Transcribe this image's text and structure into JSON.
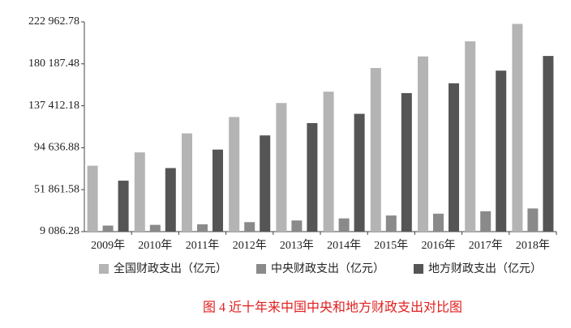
{
  "chart_data": {
    "type": "bar",
    "categories": [
      "2009年",
      "2010年",
      "2011年",
      "2012年",
      "2013年",
      "2014年",
      "2015年",
      "2016年",
      "2017年",
      "2018年"
    ],
    "series": [
      {
        "name": "全国财政支出（亿元）",
        "color": "#b4b4b4",
        "values": [
          76300,
          89874,
          109248,
          125953,
          140212,
          151786,
          175878,
          187755,
          203085,
          220904
        ]
      },
      {
        "name": "中央财政支出（亿元）",
        "color": "#8a8a8a",
        "values": [
          15256,
          15990,
          16514,
          18765,
          20472,
          22570,
          25542,
          27404,
          29857,
          32708
        ]
      },
      {
        "name": "地方财政支出（亿元）",
        "color": "#555555",
        "values": [
          61044,
          73884,
          92734,
          107188,
          119740,
          129215,
          150336,
          160351,
          173228,
          188196
        ]
      }
    ],
    "ylim": [
      9086.28,
      222962.78
    ],
    "yticks": [
      {
        "value": 9086.28,
        "label": "9 086.28"
      },
      {
        "value": 51861.58,
        "label": "51 861.58"
      },
      {
        "value": 94636.88,
        "label": "94 636.88"
      },
      {
        "value": 137412.18,
        "label": "137 412.18"
      },
      {
        "value": 180187.48,
        "label": "180 187.48"
      },
      {
        "value": 222962.78,
        "label": "222 962.78"
      }
    ],
    "grid": false,
    "legend": "bottom",
    "caption": "图 4 近十年来中国中央和地方财政支出对比图"
  }
}
